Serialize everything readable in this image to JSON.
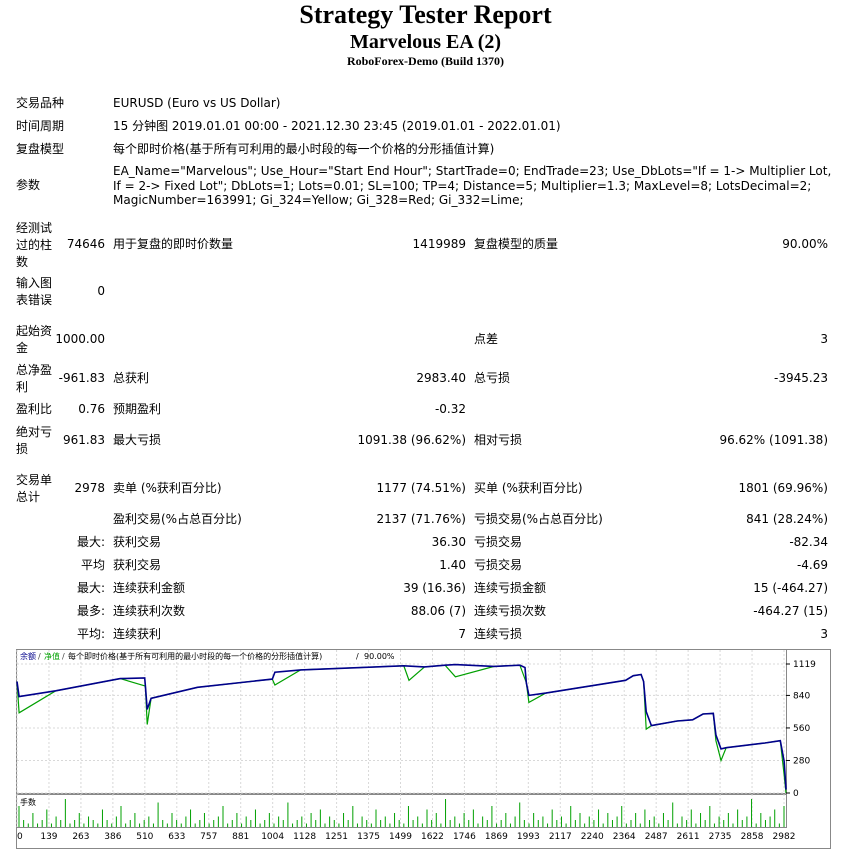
{
  "header": {
    "title": "Strategy Tester Report",
    "subtitle": "Marvelous EA (2)",
    "server": "RoboForex-Demo (Build 1370)"
  },
  "info": {
    "symbol_label": "交易品种",
    "symbol_value": "EURUSD (Euro vs US Dollar)",
    "period_label": "时间周期",
    "period_value": "15 分钟图 2019.01.01 00:00 - 2021.12.30 23:45 (2019.01.01 - 2022.01.01)",
    "model_label": "复盘模型",
    "model_value": "每个即时价格(基于所有可利用的最小时段的每一个价格的分形插值计算)",
    "params_label": "参数",
    "params_value": "EA_Name=\"Marvelous\"; Use_Hour=\"Start End Hour\"; StartTrade=0; EndTrade=23; Use_DbLots=\"If = 1-> Multiplier Lot, If = 2-> Fixed Lot\"; DbLots=1; Lots=0.01; SL=100; TP=4; Distance=5; Multiplier=1.3; MaxLevel=8; LotsDecimal=2; MagicNumber=163991; Gi_324=Yellow; Gi_328=Red; Gi_332=Lime;"
  },
  "stats": {
    "bars_label": "经测试过的柱数",
    "bars_value": "74646",
    "ticks_label": "用于复盘的即时价数量",
    "ticks_value": "1419989",
    "quality_label": "复盘模型的质量",
    "quality_value": "90.00%",
    "errors_label": "输入图表错误",
    "errors_value": "0",
    "deposit_label": "起始资金",
    "deposit_value": "1000.00",
    "spread_label": "点差",
    "spread_value": "3",
    "net_label": "总净盈利",
    "net_value": "-961.83",
    "gross_profit_label": "总获利",
    "gross_profit_value": "2983.40",
    "gross_loss_label": "总亏损",
    "gross_loss_value": "-3945.23",
    "pf_label": "盈利比",
    "pf_value": "0.76",
    "payoff_label": "预期盈利",
    "payoff_value": "-0.32",
    "abs_dd_label": "绝对亏损",
    "abs_dd_value": "961.83",
    "max_dd_label": "最大亏损",
    "max_dd_value": "1091.38 (96.62%)",
    "rel_dd_label": "相对亏损",
    "rel_dd_value": "96.62% (1091.38)",
    "trades_label": "交易单总计",
    "trades_value": "2978",
    "short_label": "卖单 (%获利百分比)",
    "short_value": "1177 (74.51%)",
    "long_label": "买单 (%获利百分比)",
    "long_value": "1801 (69.96%)",
    "win_label": "盈利交易(%占总百分比)",
    "win_value": "2137 (71.76%)",
    "loss_label": "亏损交易(%占总百分比)",
    "loss_value": "841 (28.24%)",
    "largest_prefix": "最大:",
    "largest_profit_label": "获利交易",
    "largest_profit_value": "36.30",
    "largest_loss_label": "亏损交易",
    "largest_loss_value": "-82.34",
    "average_prefix": "平均",
    "average_profit_label": "获利交易",
    "average_profit_value": "1.40",
    "average_loss_label": "亏损交易",
    "average_loss_value": "-4.69",
    "max_prefix": "最大:",
    "max_consec_wins_label": "连续获利金额",
    "max_consec_wins_value": "39 (16.36)",
    "max_consec_losses_label": "连续亏损金额",
    "max_consec_losses_value": "15 (-464.27)",
    "most_prefix": "最多:",
    "most_consec_profit_label": "连续获利次数",
    "most_consec_profit_value": "88.06 (7)",
    "most_consec_loss_label": "连续亏损次数",
    "most_consec_loss_value": "-464.27 (15)",
    "avg_prefix": "平均:",
    "avg_consec_wins_label": "连续获利",
    "avg_consec_wins_value": "7",
    "avg_consec_losses_label": "连续亏损",
    "avg_consec_losses_value": "3"
  },
  "chart_data": {
    "type": "line",
    "legend_balance": "余额",
    "legend_equity": "净值",
    "legend_model": "每个即时价格(基于所有可利用的最小时段的每一个价格的分形插值计算)",
    "legend_quality": "90.00%",
    "volume_label": "手数",
    "y_ticks": [
      "1119",
      "840",
      "560",
      "280",
      "0"
    ],
    "ylim": [
      0,
      1119
    ],
    "x_ticks": [
      "0",
      "139",
      "263",
      "386",
      "510",
      "633",
      "757",
      "881",
      "1004",
      "1128",
      "1251",
      "1375",
      "1499",
      "1622",
      "1746",
      "1869",
      "1993",
      "2117",
      "2240",
      "2364",
      "2487",
      "2611",
      "2735",
      "2858",
      "2982"
    ],
    "xlim": [
      0,
      2982
    ],
    "balance_color": "#00008b",
    "equity_color": "#00a000",
    "series": [
      {
        "name": "余额",
        "points": [
          [
            0,
            960
          ],
          [
            8,
            830
          ],
          [
            150,
            880
          ],
          [
            400,
            985
          ],
          [
            495,
            990
          ],
          [
            498,
            920
          ],
          [
            505,
            720
          ],
          [
            520,
            815
          ],
          [
            700,
            910
          ],
          [
            990,
            980
          ],
          [
            1000,
            1040
          ],
          [
            1100,
            1060
          ],
          [
            1500,
            1095
          ],
          [
            1580,
            1085
          ],
          [
            1660,
            1100
          ],
          [
            1700,
            1105
          ],
          [
            1850,
            1090
          ],
          [
            1950,
            1100
          ],
          [
            1970,
            1080
          ],
          [
            1975,
            950
          ],
          [
            1985,
            840
          ],
          [
            2050,
            860
          ],
          [
            2360,
            970
          ],
          [
            2390,
            1010
          ],
          [
            2420,
            1020
          ],
          [
            2430,
            960
          ],
          [
            2440,
            700
          ],
          [
            2460,
            580
          ],
          [
            2560,
            620
          ],
          [
            2620,
            630
          ],
          [
            2660,
            680
          ],
          [
            2700,
            685
          ],
          [
            2710,
            500
          ],
          [
            2730,
            380
          ],
          [
            2750,
            390
          ],
          [
            2900,
            430
          ],
          [
            2960,
            450
          ],
          [
            2975,
            270
          ],
          [
            2982,
            30
          ]
        ]
      },
      {
        "name": "净值",
        "points": [
          [
            0,
            960
          ],
          [
            8,
            690
          ],
          [
            150,
            880
          ],
          [
            400,
            985
          ],
          [
            498,
            920
          ],
          [
            505,
            590
          ],
          [
            520,
            815
          ],
          [
            700,
            910
          ],
          [
            990,
            980
          ],
          [
            1000,
            930
          ],
          [
            1100,
            1060
          ],
          [
            1500,
            1095
          ],
          [
            1520,
            970
          ],
          [
            1580,
            1085
          ],
          [
            1660,
            1100
          ],
          [
            1700,
            1000
          ],
          [
            1850,
            1090
          ],
          [
            1950,
            1100
          ],
          [
            1975,
            950
          ],
          [
            1985,
            780
          ],
          [
            2050,
            860
          ],
          [
            2360,
            970
          ],
          [
            2390,
            1010
          ],
          [
            2420,
            1020
          ],
          [
            2430,
            960
          ],
          [
            2440,
            550
          ],
          [
            2460,
            580
          ],
          [
            2560,
            620
          ],
          [
            2620,
            630
          ],
          [
            2660,
            680
          ],
          [
            2700,
            685
          ],
          [
            2710,
            450
          ],
          [
            2730,
            280
          ],
          [
            2750,
            390
          ],
          [
            2900,
            430
          ],
          [
            2960,
            450
          ],
          [
            2975,
            150
          ],
          [
            2982,
            0
          ]
        ]
      }
    ],
    "volumes": [
      0.06,
      0.02,
      0.01,
      0.04,
      0.01,
      0.02,
      0.05,
      0.01,
      0.03,
      0.02,
      0.08,
      0.01,
      0.02,
      0.04,
      0.01,
      0.03,
      0.02,
      0.01,
      0.05,
      0.02,
      0.01,
      0.03,
      0.06,
      0.01,
      0.02,
      0.04,
      0.01,
      0.02,
      0.03,
      0.01,
      0.07,
      0.02,
      0.01,
      0.04,
      0.02,
      0.01,
      0.03,
      0.05,
      0.01,
      0.02,
      0.04,
      0.01,
      0.02,
      0.03,
      0.06,
      0.01,
      0.02,
      0.04,
      0.01,
      0.03,
      0.02,
      0.05,
      0.01,
      0.02,
      0.04,
      0.01,
      0.03,
      0.02,
      0.07,
      0.01,
      0.02,
      0.03,
      0.01,
      0.04,
      0.02,
      0.05,
      0.01,
      0.03,
      0.02,
      0.01,
      0.04,
      0.02,
      0.06,
      0.01,
      0.03,
      0.02,
      0.01,
      0.05,
      0.02,
      0.03,
      0.01,
      0.04,
      0.02,
      0.01,
      0.06,
      0.02,
      0.03,
      0.01,
      0.05,
      0.02,
      0.04,
      0.01,
      0.08,
      0.02,
      0.03,
      0.01,
      0.04,
      0.02,
      0.05,
      0.01,
      0.03,
      0.02,
      0.06,
      0.01,
      0.02,
      0.04,
      0.01,
      0.03,
      0.07,
      0.02,
      0.01,
      0.04,
      0.02,
      0.03,
      0.01,
      0.05,
      0.02,
      0.03,
      0.01,
      0.06,
      0.02,
      0.04,
      0.01,
      0.03,
      0.02,
      0.05,
      0.01,
      0.04,
      0.02,
      0.03,
      0.06,
      0.01,
      0.02,
      0.04,
      0.01,
      0.05,
      0.02,
      0.03,
      0.01,
      0.04,
      0.02,
      0.07,
      0.01,
      0.03,
      0.02,
      0.05,
      0.01,
      0.04,
      0.02,
      0.06,
      0.01,
      0.03,
      0.02,
      0.04,
      0.01,
      0.05,
      0.02,
      0.03,
      0.08,
      0.01,
      0.04,
      0.02,
      0.03,
      0.05,
      0.01,
      0.06
    ]
  }
}
